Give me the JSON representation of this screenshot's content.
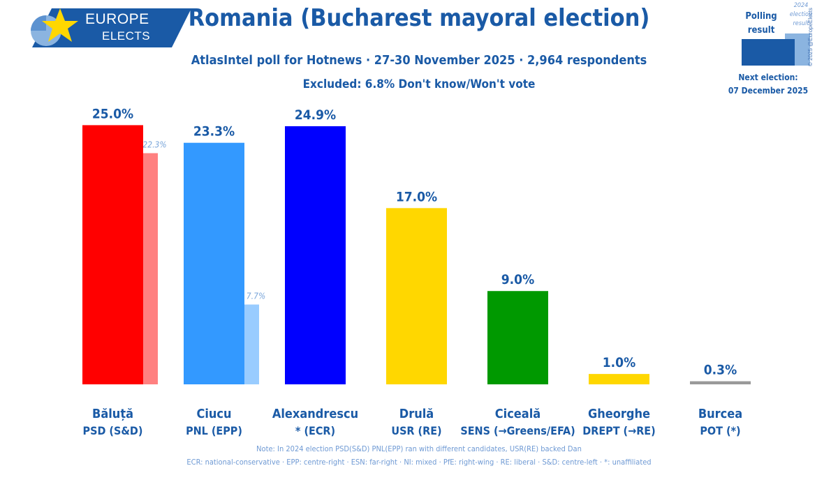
{
  "logo": {
    "line1": "EUROPE",
    "line2": "ELECTS"
  },
  "title": "Romania (Bucharest mayoral election)",
  "subtitle": "AtlasIntel poll for Hotnews · 27-30 November 2025 · 2,964 respondents",
  "excluded": "Excluded: 6.8% Don't know/Won't vote",
  "legend": {
    "poll_label": "Polling result",
    "prev_label": "2024 election result",
    "next_election": "Next election:",
    "next_date": "07 December 2025",
    "copyright": "© 2025 @EuropeElects"
  },
  "colors": {
    "brand": "#1a5aa6",
    "psd": "#ff0000",
    "psd_prev": "#ff8080",
    "pnl": "#3399ff",
    "pnl_prev": "#99ccff",
    "aur": "#0000ff",
    "usr": "#ffd700",
    "sens": "#009900",
    "drept": "#ffd700",
    "pot": "#999999"
  },
  "chart_data": {
    "type": "bar",
    "categories": [
      "Băluță",
      "Ciucu",
      "Alexandrescu",
      "Drulă",
      "Ciceală",
      "Gheorghe",
      "Burcea"
    ],
    "parties": [
      "PSD (S&D)",
      "PNL (EPP)",
      "* (ECR)",
      "USR (RE)",
      "SENS (→Greens/EFA)",
      "DREPT (→RE)",
      "POT (*)"
    ],
    "series": [
      {
        "name": "Polling result",
        "values": [
          25.0,
          23.3,
          24.9,
          17.0,
          9.0,
          1.0,
          0.3
        ],
        "labels": [
          "25.0%",
          "23.3%",
          "24.9%",
          "17.0%",
          "9.0%",
          "1.0%",
          "0.3%"
        ]
      },
      {
        "name": "2024 election result",
        "values": [
          22.3,
          7.7,
          null,
          null,
          null,
          null,
          null
        ],
        "labels": [
          "22.3%",
          "7.7%",
          "",
          "",
          "",
          "",
          ""
        ]
      }
    ],
    "bar_colors": [
      "#ff0000",
      "#3399ff",
      "#0000ff",
      "#ffd700",
      "#009900",
      "#ffd700",
      "#999999"
    ],
    "prev_colors": [
      "#ff8080",
      "#99ccff",
      null,
      null,
      null,
      null,
      null
    ],
    "ylim": [
      0,
      25.5
    ],
    "grid": false
  },
  "footer": {
    "note": "Note: In 2024 election PSD(S&D) PNL(EPP) ran with different candidates, USR(RE) backed Dan",
    "glossary": "ECR: national-conservative · EPP: centre-right · ESN: far-right · NI: mixed · PfE: right-wing · RE: liberal · S&D: centre-left · *: unaffiliated"
  }
}
